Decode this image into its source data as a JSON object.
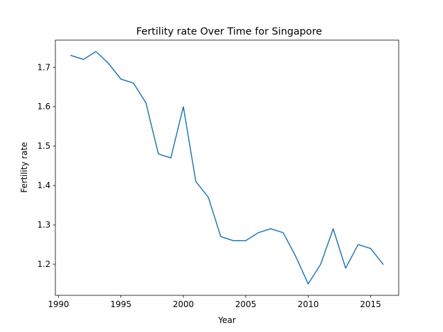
{
  "chart_data": {
    "type": "line",
    "title": "Fertility rate Over Time for Singapore",
    "xlabel": "Year",
    "ylabel": "Fertility rate",
    "xlim": [
      1989.75,
      2017.25
    ],
    "ylim": [
      1.121,
      1.769
    ],
    "xticks": [
      1990,
      1995,
      2000,
      2005,
      2010,
      2015
    ],
    "xtick_labels": [
      "1990",
      "1995",
      "2000",
      "2005",
      "2010",
      "2015"
    ],
    "yticks": [
      1.2,
      1.3,
      1.4,
      1.5,
      1.6,
      1.7
    ],
    "ytick_labels": [
      "1.2",
      "1.3",
      "1.4",
      "1.5",
      "1.6",
      "1.7"
    ],
    "grid": false,
    "line_color": "#1f77b4",
    "series": [
      {
        "x": [
          1991,
          1992,
          1993,
          1994,
          1995,
          1996,
          1997,
          1998,
          1999,
          2000,
          2001,
          2002,
          2003,
          2004,
          2005,
          2006,
          2007,
          2008,
          2009,
          2010,
          2011,
          2012,
          2013,
          2014,
          2015,
          2016
        ],
        "values": [
          1.73,
          1.72,
          1.74,
          1.71,
          1.67,
          1.66,
          1.61,
          1.48,
          1.47,
          1.6,
          1.41,
          1.37,
          1.27,
          1.26,
          1.26,
          1.28,
          1.29,
          1.28,
          1.22,
          1.15,
          1.2,
          1.29,
          1.19,
          1.25,
          1.24,
          1.2
        ]
      }
    ]
  }
}
